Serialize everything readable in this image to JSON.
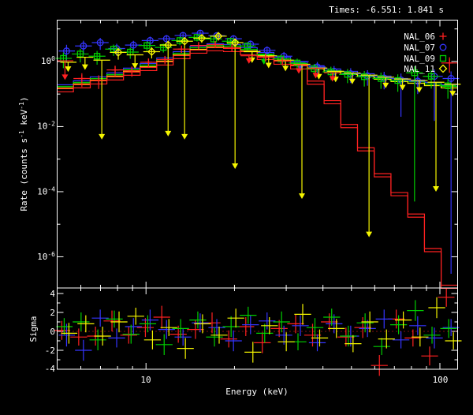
{
  "header": {
    "times_label": "Times: -6.551: 1.841 s"
  },
  "legend": {
    "items": [
      {
        "label": "NAL_06",
        "marker": "plus",
        "color": "#ff2121"
      },
      {
        "label": "NAL_07",
        "marker": "circle",
        "color": "#3535ff"
      },
      {
        "label": "NAL_09",
        "marker": "square",
        "color": "#00cf00"
      },
      {
        "label": "NAL_11",
        "marker": "diamond",
        "color": "#f5f500"
      }
    ]
  },
  "chart_data": {
    "type": "scatter",
    "axes": {
      "x_label": "Energy (keV)",
      "y_label_parts": {
        "pre": "Rate (counts s",
        "sup1": "-1",
        "mid": " keV",
        "sup2": "-1",
        "post": ")"
      },
      "sigma_label": "Sigma",
      "x_tick_labels": [
        "10",
        "100"
      ],
      "x_ticks_major": [
        10,
        100
      ],
      "x_ticks_minor": [
        6,
        7,
        8,
        9,
        20,
        30,
        40,
        50,
        60,
        70,
        80,
        90
      ],
      "rate_tick_labels": [
        {
          "base": "10",
          "exp": "0"
        },
        {
          "base": "10",
          "exp": "-2"
        },
        {
          "base": "10",
          "exp": "-4"
        },
        {
          "base": "10",
          "exp": "-6"
        }
      ],
      "rate_decades": [
        1,
        0,
        -1,
        -2,
        -3,
        -4,
        -5,
        -6
      ],
      "rate_labeled_decades": [
        0,
        -2,
        -4,
        -6
      ],
      "sigma_tick_labels": [
        "4",
        "2",
        "0",
        "-2",
        "-4"
      ],
      "sigma_ticks_all": [
        -4,
        -3,
        -2,
        -1,
        0,
        1,
        2,
        3,
        4
      ],
      "sigma_labeled": [
        4,
        2,
        0,
        -2,
        -4
      ],
      "x_range": [
        4.985,
        114.9
      ],
      "rate_range": [
        1.1e-07,
        18.66
      ],
      "sigma_range": [
        -4.0,
        4.583
      ],
      "zero_line_color": "#ff2121"
    },
    "energies": [
      5.3,
      6.05,
      6.9,
      7.85,
      8.95,
      10.2,
      11.6,
      13.2,
      15.1,
      17.2,
      19.6,
      22.4,
      25.5,
      29.1,
      33.1,
      37.8,
      43.1,
      49.1,
      56.0,
      63.8,
      72.8,
      83.0,
      94.6,
      107.8
    ],
    "bin_half_ratio": 1.068,
    "model_rates": {
      "common": [
        0.163,
        0.216,
        0.285,
        0.377,
        0.527,
        0.736,
        1.087,
        1.698,
        2.509,
        2.966,
        2.807,
        2.247,
        1.606,
        1.149,
        0.822,
        0.623,
        0.498,
        0.421,
        0.356,
        0.301,
        0.255,
        0.227,
        0.192,
        0.163
      ],
      "red": [
        0.163,
        0.216,
        0.285,
        0.377,
        0.527,
        0.736,
        1.087,
        1.698,
        2.509,
        2.966,
        2.807,
        2.247,
        1.606,
        1.149,
        0.822,
        0.28,
        0.07,
        0.013,
        0.0025,
        0.0004,
        0.000105,
        2.3e-05,
        2e-06,
        1.5e-07
      ]
    },
    "models": [
      {
        "name": "NAL_07-model",
        "color": "#3535ff",
        "rates_ref": "common",
        "dy": -3,
        "double": false
      },
      {
        "name": "NAL_09-model",
        "color": "#00cf00",
        "rates_ref": "common",
        "dy": -1,
        "double": false
      },
      {
        "name": "NAL_11-model",
        "color": "#f5f500",
        "rates_ref": "common",
        "dy": 1,
        "double": false
      },
      {
        "name": "NAL_06-model",
        "color": "#ff2121",
        "rates_ref": "red",
        "dy": 2,
        "double": true
      }
    ],
    "series": [
      {
        "name": "NAL_07",
        "color": "#3535ff",
        "marker": "circle",
        "dx": 2,
        "lo_arrow": false,
        "pts": [
          [
            5.3,
            2.1,
            0.55
          ],
          [
            6.05,
            3.0,
            0.45
          ],
          [
            6.9,
            3.8,
            0.4
          ],
          [
            7.85,
            2.5,
            0.4
          ],
          [
            8.95,
            3.2,
            0.35
          ],
          [
            10.2,
            4.4,
            0.32
          ],
          [
            11.6,
            5.0,
            0.3
          ],
          [
            13.2,
            6.3,
            0.27
          ],
          [
            15.1,
            7.4,
            0.25
          ],
          [
            17.2,
            6.2,
            0.25
          ],
          [
            19.6,
            5.0,
            0.27
          ],
          [
            22.4,
            3.4,
            0.3
          ],
          [
            25.5,
            2.2,
            0.32
          ],
          [
            29.1,
            1.45,
            0.35
          ],
          [
            37.8,
            0.68,
            0.42
          ],
          [
            43.1,
            0.5,
            0.45
          ],
          [
            49.1,
            0.42,
            0.48
          ],
          [
            56.0,
            0.36,
            0.5
          ],
          [
            63.8,
            0.31,
            0.55
          ],
          [
            72.8,
            0.27,
            0.58,
            0.02
          ],
          [
            83.0,
            0.25,
            0.6
          ],
          [
            94.6,
            0.35,
            0.62,
            0.015
          ],
          [
            107.8,
            0.3,
            0.65,
            3e-07
          ]
        ],
        "uls": [
          [
            33.1,
            1.0,
            0.5
          ]
        ]
      },
      {
        "name": "NAL_09",
        "color": "#00cf00",
        "marker": "square",
        "dx": -2,
        "lo_arrow": false,
        "pts": [
          [
            5.3,
            1.25,
            0.5
          ],
          [
            6.05,
            1.7,
            0.45
          ],
          [
            6.9,
            1.45,
            0.45
          ],
          [
            7.85,
            2.4,
            0.38
          ],
          [
            8.95,
            1.95,
            0.38
          ],
          [
            10.2,
            3.1,
            0.32
          ],
          [
            11.6,
            2.7,
            0.3
          ],
          [
            13.2,
            4.4,
            0.28
          ],
          [
            15.1,
            5.5,
            0.25
          ],
          [
            17.2,
            4.9,
            0.25
          ],
          [
            19.6,
            4.2,
            0.27
          ],
          [
            22.4,
            3.0,
            0.29
          ],
          [
            29.1,
            1.2,
            0.33
          ],
          [
            33.1,
            0.9,
            0.36
          ],
          [
            37.8,
            0.6,
            0.4
          ],
          [
            43.1,
            0.48,
            0.44
          ],
          [
            49.1,
            0.4,
            0.46
          ],
          [
            56.0,
            0.34,
            0.5
          ],
          [
            63.8,
            0.3,
            0.52
          ],
          [
            72.8,
            0.26,
            0.55
          ],
          [
            83.0,
            0.45,
            0.58,
            5e-05
          ],
          [
            94.6,
            0.35,
            0.58
          ],
          [
            107.8,
            0.18,
            0.6
          ]
        ],
        "uls": [
          [
            25.5,
            1.6,
            0.8
          ]
        ]
      },
      {
        "name": "NAL_11",
        "color": "#f5f500",
        "marker": "diamond",
        "dx": 4,
        "lo_arrow": true,
        "pts": [
          [
            7.85,
            1.9,
            0.4
          ],
          [
            10.2,
            2.0,
            0.38
          ],
          [
            11.6,
            3.2,
            0.34,
            0.005
          ],
          [
            13.2,
            4.2,
            0.3,
            0.004
          ],
          [
            15.1,
            5.2,
            0.28
          ],
          [
            17.2,
            6.0,
            0.27
          ],
          [
            19.6,
            3.8,
            0.3,
            0.0005
          ]
        ],
        "uls": [
          [
            5.3,
            0.95,
            0.48
          ],
          [
            6.05,
            1.35,
            0.55
          ],
          [
            6.9,
            1.1,
            0.004
          ],
          [
            8.95,
            1.6,
            0.6
          ],
          [
            22.4,
            2.0,
            0.9
          ],
          [
            25.5,
            1.5,
            0.62
          ],
          [
            29.1,
            1.1,
            0.5
          ],
          [
            33.1,
            0.82,
            6e-05
          ],
          [
            37.8,
            0.63,
            0.28
          ],
          [
            43.1,
            0.5,
            0.23
          ],
          [
            49.1,
            0.44,
            0.2
          ],
          [
            56.0,
            0.38,
            4e-06
          ],
          [
            63.8,
            0.33,
            0.15
          ],
          [
            72.8,
            0.29,
            0.13
          ],
          [
            83.0,
            0.26,
            0.11
          ],
          [
            94.6,
            0.23,
            0.0001
          ],
          [
            107.8,
            0.2,
            0.085
          ]
        ]
      },
      {
        "name": "NAL_06",
        "color": "#ff2121",
        "marker": "plus",
        "dx": 0,
        "lo_arrow": false,
        "pts": [
          [
            6.05,
            0.3,
            0.45
          ],
          [
            6.9,
            0.26,
            0.45
          ],
          [
            7.85,
            0.55,
            0.35
          ],
          [
            8.95,
            0.52,
            0.35
          ],
          [
            10.2,
            0.95,
            0.3
          ],
          [
            11.6,
            1.15,
            0.28
          ],
          [
            13.2,
            2.4,
            0.24
          ],
          [
            15.1,
            3.1,
            0.22
          ],
          [
            17.2,
            3.3,
            0.22
          ],
          [
            19.6,
            2.6,
            0.24
          ],
          [
            25.5,
            1.35,
            0.26
          ],
          [
            29.1,
            1.05,
            0.28
          ],
          [
            107.8,
            0.9,
            0.5
          ]
        ],
        "uls": [
          [
            5.3,
            1.05,
            0.27
          ],
          [
            22.4,
            1.5,
            0.85
          ],
          [
            33.1,
            0.8,
            0.42
          ],
          [
            37.8,
            0.62,
            0.3
          ],
          [
            43.1,
            0.45,
            0.24
          ]
        ]
      }
    ],
    "residuals": {
      "series": [
        {
          "name": "NAL_06-sigma",
          "color": "#ff2121",
          "dx": -4,
          "sig": [
            0.1,
            -0.6,
            -0.5,
            1.1,
            -0.4,
            0.4,
            1.5,
            -0.3,
            0.2,
            0.9,
            -0.8,
            0.5,
            -1.2,
            0.3,
            0.8,
            -0.4,
            1.0,
            -0.6,
            0.4,
            -3.6,
            1.3,
            -0.7,
            -2.6,
            3.6
          ],
          "err": [
            1.0,
            0.9,
            1.0,
            1.1,
            0.9,
            1.0,
            1.2,
            0.9,
            1.0,
            1.1,
            0.9,
            1.0,
            1.1,
            0.9,
            1.0,
            1.2,
            0.9,
            1.0,
            1.1,
            1.1,
            1.0,
            0.9,
            1.0,
            1.0
          ]
        },
        {
          "name": "NAL_07-sigma",
          "color": "#3535ff",
          "dx": 2,
          "sig": [
            -0.4,
            -2.0,
            1.4,
            -0.7,
            0.5,
            1.2,
            0.2,
            -0.6,
            0.9,
            0.4,
            -1.0,
            0.7,
            1.1,
            -0.4,
            0.6,
            -1.2,
            0.8,
            -0.5,
            0.3,
            1.3,
            -0.9,
            0.6,
            -0.7,
            0.4
          ],
          "err": [
            1.2,
            1.1,
            0.9,
            1.0,
            0.9,
            1.1,
            1.0,
            0.9,
            1.0,
            0.9,
            1.1,
            1.0,
            0.9,
            1.0,
            1.1,
            0.9,
            1.0,
            1.1,
            0.9,
            1.0,
            0.9,
            1.0,
            1.1,
            0.9
          ]
        },
        {
          "name": "NAL_09-sigma",
          "color": "#00cf00",
          "dx": -1,
          "sig": [
            0.5,
            1.0,
            -0.9,
            1.3,
            -0.3,
            0.8,
            -1.4,
            0.3,
            1.2,
            -0.6,
            0.5,
            1.7,
            -0.2,
            1.0,
            -1.1,
            0.4,
            1.5,
            -0.5,
            0.9,
            -1.6,
            0.7,
            2.2,
            -0.4,
            0.3
          ],
          "err": [
            0.9,
            1.0,
            1.1,
            0.9,
            1.0,
            0.9,
            1.1,
            1.0,
            0.9,
            1.0,
            1.1,
            0.9,
            1.0,
            1.1,
            0.9,
            1.0,
            0.9,
            1.1,
            1.0,
            0.9,
            1.0,
            1.1,
            0.9,
            1.0
          ]
        },
        {
          "name": "NAL_11-sigma",
          "color": "#f5f500",
          "dx": 5,
          "sig": [
            -0.2,
            0.8,
            -0.5,
            1.0,
            1.6,
            -0.9,
            0.4,
            -1.8,
            0.8,
            -0.4,
            1.4,
            -2.2,
            0.6,
            -1.1,
            1.8,
            -0.7,
            0.3,
            -1.3,
            1.0,
            -0.8,
            1.2,
            -0.6,
            2.5,
            -1.0
          ],
          "err": [
            1.1,
            0.9,
            1.0,
            1.1,
            0.9,
            1.0,
            0.9,
            1.1,
            1.0,
            0.9,
            1.0,
            1.1,
            0.9,
            1.0,
            1.1,
            0.9,
            1.0,
            0.9,
            1.1,
            1.0,
            0.9,
            1.0,
            1.1,
            0.9
          ]
        }
      ]
    }
  }
}
